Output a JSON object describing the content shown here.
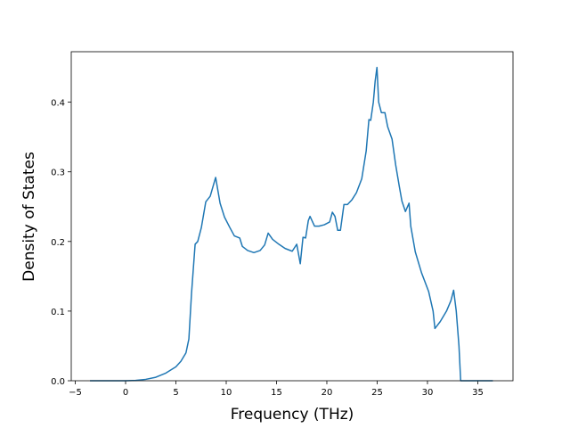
{
  "chart_data": {
    "type": "line",
    "x_label": "Frequency (THz)",
    "y_label": "Density of States",
    "x": [
      -3.54,
      0,
      1,
      2,
      3,
      4,
      5,
      5.5,
      6,
      6.29,
      6.55,
      6.91,
      7.17,
      7.53,
      7.97,
      8.41,
      8.95,
      9.39,
      9.83,
      10.36,
      10.81,
      11.34,
      11.6,
      12.13,
      12.75,
      13.37,
      13.82,
      14.17,
      14.61,
      15.23,
      15.85,
      16.56,
      17.01,
      17.36,
      17.63,
      17.89,
      18.16,
      18.33,
      18.78,
      19.22,
      19.75,
      20.28,
      20.55,
      20.81,
      21.08,
      21.35,
      21.7,
      22.05,
      22.5,
      22.94,
      23.47,
      23.91,
      24.18,
      24.36,
      24.62,
      24.8,
      24.98,
      25.15,
      25.42,
      25.77,
      26.04,
      26.48,
      26.84,
      27.19,
      27.46,
      27.81,
      28.17,
      28.34,
      28.79,
      29.41,
      30.12,
      30.56,
      30.74,
      31.27,
      31.89,
      32.33,
      32.6,
      32.86,
      33.13,
      33.3,
      36.5
    ],
    "series": [
      {
        "color": "#1f77b4",
        "values": [
          0,
          0,
          0.0005,
          0.002,
          0.005,
          0.011,
          0.02,
          0.028,
          0.04,
          0.06,
          0.125,
          0.196,
          0.2,
          0.22,
          0.257,
          0.265,
          0.292,
          0.255,
          0.235,
          0.22,
          0.208,
          0.205,
          0.193,
          0.187,
          0.184,
          0.187,
          0.195,
          0.212,
          0.203,
          0.196,
          0.19,
          0.186,
          0.196,
          0.168,
          0.206,
          0.205,
          0.23,
          0.236,
          0.222,
          0.222,
          0.224,
          0.228,
          0.242,
          0.236,
          0.216,
          0.216,
          0.253,
          0.253,
          0.26,
          0.27,
          0.29,
          0.33,
          0.375,
          0.374,
          0.4,
          0.43,
          0.45,
          0.4,
          0.385,
          0.385,
          0.365,
          0.347,
          0.31,
          0.28,
          0.258,
          0.243,
          0.255,
          0.222,
          0.185,
          0.155,
          0.128,
          0.1,
          0.075,
          0.085,
          0.1,
          0.115,
          0.13,
          0.1,
          0.05,
          0,
          0
        ]
      }
    ],
    "xlim": [
      -5.4,
      38.5
    ],
    "ylim": [
      0,
      0.4725
    ],
    "xticks": [
      {
        "value": -5,
        "label": "−5"
      },
      0,
      5,
      10,
      15,
      20,
      25,
      30,
      35
    ],
    "yticks": [
      {
        "value": 0,
        "label": "0.0"
      },
      0.1,
      0.2,
      0.3,
      0.4
    ],
    "grid": false
  }
}
